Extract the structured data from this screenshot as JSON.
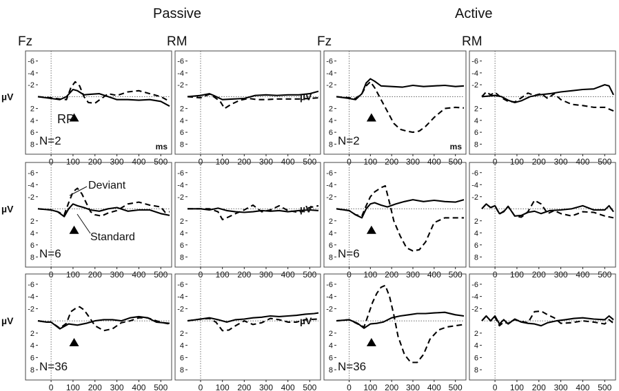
{
  "figure": {
    "conditions": [
      "Passive",
      "Active"
    ],
    "electrodes": [
      "Fz",
      "RM",
      "Fz",
      "RM"
    ],
    "y_unit": "µV",
    "x_unit": "ms",
    "n_labels": [
      "N=2",
      "N=6",
      "N=36"
    ],
    "annotations": {
      "rp": "RP",
      "deviant": "Deviant",
      "standard": "Standard"
    },
    "y_tick_labels": [
      "-6",
      "-4",
      "-2",
      "2",
      "4",
      "6",
      "8"
    ],
    "x_tick_labels": [
      "0",
      "100",
      "200",
      "300",
      "400",
      "500"
    ]
  },
  "chart_data": {
    "type": "line",
    "x_range": [
      -60,
      540
    ],
    "y_range_uV": [
      -7,
      9
    ],
    "y_inverted": true,
    "grid": false,
    "series_styles": {
      "Standard": "solid",
      "Deviant": "dashed"
    },
    "panels": [
      {
        "condition": "Passive",
        "electrode": "Fz",
        "n": 2,
        "marker_x": 105,
        "standard": {
          "x": [
            -60,
            0,
            40,
            70,
            100,
            120,
            150,
            180,
            220,
            260,
            300,
            350,
            400,
            450,
            500,
            540
          ],
          "y": [
            0,
            0.3,
            0.5,
            0,
            -1.2,
            -1,
            -0.3,
            -0.4,
            -0.5,
            0,
            0.5,
            0.5,
            0.6,
            0.5,
            0.8,
            1.6
          ]
        },
        "deviant": {
          "x": [
            -60,
            0,
            40,
            70,
            90,
            110,
            130,
            150,
            170,
            200,
            230,
            260,
            300,
            350,
            400,
            450,
            500,
            540
          ],
          "y": [
            0,
            0.2,
            0.4,
            0.5,
            -1.5,
            -2.5,
            -1.8,
            0,
            1,
            1.1,
            0.3,
            -0.5,
            -0.2,
            -0.8,
            -1,
            -0.5,
            0,
            0.8
          ]
        }
      },
      {
        "condition": "Passive",
        "electrode": "RM",
        "n": 2,
        "marker_x": null,
        "standard": {
          "x": [
            -60,
            0,
            40,
            60,
            100,
            150,
            200,
            250,
            300,
            350,
            400,
            450,
            500,
            540
          ],
          "y": [
            0,
            -0.2,
            -0.5,
            -0.2,
            0.5,
            0.4,
            0.3,
            -0.2,
            -0.3,
            -0.2,
            -0.3,
            -0.3,
            -0.5,
            -0.9
          ]
        },
        "deviant": {
          "x": [
            -60,
            0,
            40,
            60,
            90,
            110,
            140,
            180,
            220,
            260,
            300,
            350,
            400,
            450,
            500,
            540
          ],
          "y": [
            0,
            0.2,
            -0.4,
            0,
            0.8,
            2,
            1.3,
            0.6,
            0.3,
            0.5,
            0.5,
            0.4,
            0.4,
            0.4,
            0.3,
            0.2
          ]
        }
      },
      {
        "condition": "Active",
        "electrode": "Fz",
        "n": 2,
        "marker_x": 105,
        "standard": {
          "x": [
            -60,
            0,
            30,
            60,
            80,
            100,
            120,
            150,
            200,
            250,
            300,
            350,
            400,
            450,
            500,
            540
          ],
          "y": [
            0,
            0.3,
            0.5,
            -0.5,
            -2.3,
            -3,
            -2.6,
            -1.8,
            -1.7,
            -1.6,
            -1.9,
            -1.7,
            -1.8,
            -1.9,
            -1.7,
            -1.8
          ]
        },
        "deviant": {
          "x": [
            -60,
            0,
            30,
            60,
            80,
            100,
            120,
            150,
            180,
            210,
            240,
            270,
            300,
            330,
            360,
            400,
            450,
            500,
            540
          ],
          "y": [
            0,
            0.2,
            0.3,
            -0.5,
            -1.8,
            -2.5,
            -1.5,
            0.5,
            2.5,
            4.5,
            5.5,
            5.8,
            6,
            5.8,
            5,
            3.5,
            2,
            1.8,
            1.9
          ]
        }
      },
      {
        "condition": "Active",
        "electrode": "RM",
        "n": 2,
        "marker_x": null,
        "standard": {
          "x": [
            -60,
            0,
            30,
            60,
            90,
            120,
            160,
            200,
            250,
            300,
            350,
            400,
            450,
            500,
            520,
            540
          ],
          "y": [
            0,
            -0.2,
            0,
            0.6,
            1,
            0.7,
            0,
            -0.3,
            -0.5,
            -0.8,
            -1,
            -1.2,
            -1.3,
            -2,
            -1.8,
            -0.3
          ]
        },
        "deviant": {
          "x": [
            -60,
            -40,
            -20,
            0,
            30,
            60,
            90,
            120,
            150,
            180,
            210,
            240,
            270,
            300,
            350,
            400,
            450,
            500,
            540
          ],
          "y": [
            0,
            -0.8,
            -0.3,
            -0.7,
            0.2,
            0.8,
            0.9,
            0.2,
            -0.6,
            -0.2,
            -0.5,
            0.3,
            -0.5,
            0.5,
            1.3,
            1.5,
            1.8,
            1.8,
            2.4
          ]
        }
      },
      {
        "condition": "Passive",
        "electrode": "Fz",
        "n": 6,
        "marker_x": 105,
        "standard": {
          "x": [
            -60,
            0,
            30,
            60,
            80,
            100,
            120,
            150,
            180,
            220,
            260,
            300,
            350,
            400,
            450,
            500,
            540
          ],
          "y": [
            0,
            0.2,
            0.5,
            1.3,
            0,
            -0.8,
            -0.5,
            -0.2,
            0.2,
            0.4,
            0,
            -0.2,
            0.4,
            0.2,
            0.2,
            0.8,
            1.1
          ]
        },
        "deviant": {
          "x": [
            -60,
            0,
            30,
            60,
            80,
            100,
            120,
            140,
            160,
            180,
            200,
            230,
            260,
            300,
            350,
            400,
            450,
            500,
            520,
            540
          ],
          "y": [
            0,
            0.2,
            0.5,
            1,
            -1,
            -2.8,
            -3.4,
            -2.5,
            -1,
            0.5,
            1,
            1.2,
            0.7,
            0.3,
            -0.8,
            -1.1,
            -0.6,
            -0.3,
            0.6,
            0.5
          ]
        }
      },
      {
        "condition": "Passive",
        "electrode": "RM",
        "n": 6,
        "marker_x": null,
        "standard": {
          "x": [
            -60,
            0,
            40,
            80,
            120,
            160,
            200,
            240,
            280,
            320,
            360,
            400,
            450,
            500,
            540
          ],
          "y": [
            0,
            0,
            0.2,
            -0.1,
            0.3,
            0.5,
            0.6,
            0.5,
            0.3,
            0.4,
            0.3,
            0.5,
            0.3,
            0.2,
            0.3
          ]
        },
        "deviant": {
          "x": [
            -60,
            0,
            40,
            80,
            100,
            120,
            160,
            200,
            240,
            280,
            320,
            360,
            400,
            450,
            500,
            540
          ],
          "y": [
            0,
            0,
            0,
            0.5,
            1.8,
            1.5,
            0.8,
            0.2,
            -0.6,
            0.5,
            0.2,
            -0.5,
            0.3,
            0.6,
            -0.2,
            -0.5
          ]
        }
      },
      {
        "condition": "Active",
        "electrode": "Fz",
        "n": 6,
        "marker_x": 105,
        "standard": {
          "x": [
            -60,
            0,
            30,
            60,
            80,
            100,
            120,
            150,
            180,
            220,
            260,
            300,
            350,
            400,
            450,
            500,
            540
          ],
          "y": [
            0,
            0.3,
            1,
            1.5,
            0,
            -0.8,
            -1,
            -0.6,
            -0.3,
            -0.8,
            -1.2,
            -1.5,
            -1.2,
            -1.4,
            -1.2,
            -1.1,
            -1.5
          ]
        },
        "deviant": {
          "x": [
            -60,
            0,
            30,
            60,
            80,
            100,
            120,
            150,
            170,
            190,
            210,
            240,
            270,
            300,
            330,
            360,
            400,
            450,
            500,
            540
          ],
          "y": [
            0,
            0.3,
            1,
            1.2,
            -0.5,
            -2,
            -2.8,
            -3.5,
            -3.8,
            -1,
            2,
            4.5,
            6.5,
            7,
            6.8,
            5.5,
            2.3,
            1.5,
            1.5,
            1.5
          ]
        }
      },
      {
        "condition": "Active",
        "electrode": "RM",
        "n": 6,
        "marker_x": null,
        "standard": {
          "x": [
            -60,
            -40,
            -20,
            0,
            20,
            40,
            60,
            90,
            120,
            150,
            180,
            210,
            250,
            300,
            350,
            400,
            450,
            500,
            520,
            540
          ],
          "y": [
            0,
            -0.8,
            -0.2,
            -0.5,
            0.8,
            0.5,
            -0.4,
            1.2,
            1.1,
            0.6,
            0.4,
            0.8,
            0.3,
            0.2,
            0,
            -0.5,
            0.2,
            0.2,
            -0.5,
            0.5
          ]
        },
        "deviant": {
          "x": [
            -60,
            -40,
            -20,
            0,
            20,
            40,
            60,
            90,
            120,
            150,
            180,
            210,
            240,
            270,
            300,
            350,
            400,
            450,
            500,
            540
          ],
          "y": [
            0,
            -0.8,
            -0.2,
            -0.5,
            0.9,
            0.4,
            -0.4,
            1.2,
            1.4,
            0.5,
            -1.4,
            -0.8,
            0.8,
            0.3,
            0.8,
            1.2,
            0.5,
            0.6,
            1.2,
            1.5
          ]
        }
      },
      {
        "condition": "Passive",
        "electrode": "Fz",
        "n": 36,
        "marker_x": 105,
        "standard": {
          "x": [
            -60,
            -20,
            0,
            40,
            80,
            120,
            160,
            200,
            240,
            280,
            320,
            360,
            400,
            440,
            480,
            510,
            540
          ],
          "y": [
            0,
            0.2,
            0.2,
            1.3,
            0.5,
            0.7,
            0.4,
            0,
            -0.2,
            -0.2,
            0,
            -0.5,
            -0.7,
            -0.5,
            0.2,
            0.3,
            0.4
          ]
        },
        "deviant": {
          "x": [
            -60,
            -20,
            0,
            40,
            70,
            90,
            110,
            130,
            150,
            170,
            200,
            240,
            280,
            320,
            360,
            400,
            440,
            480,
            510,
            540
          ],
          "y": [
            0,
            0.2,
            0.2,
            1.2,
            0.4,
            -1.5,
            -2,
            -2.3,
            -1.8,
            -0.8,
            0.8,
            1.6,
            1.3,
            0.3,
            0,
            -0.5,
            -0.5,
            0,
            0.3,
            0.5
          ]
        }
      },
      {
        "condition": "Passive",
        "electrode": "RM",
        "n": 36,
        "marker_x": null,
        "standard": {
          "x": [
            -60,
            0,
            40,
            80,
            120,
            160,
            200,
            240,
            280,
            320,
            360,
            400,
            440,
            480,
            520,
            540
          ],
          "y": [
            0,
            -0.3,
            -0.5,
            -0.2,
            0.2,
            -0.2,
            -0.3,
            -0.5,
            -0.6,
            -0.8,
            -0.7,
            -0.8,
            -0.9,
            -1.1,
            -1.2,
            -1.3
          ]
        },
        "deviant": {
          "x": [
            -60,
            0,
            40,
            70,
            100,
            130,
            160,
            200,
            240,
            280,
            320,
            360,
            400,
            440,
            480,
            540
          ],
          "y": [
            0,
            -0.3,
            -0.4,
            0.2,
            1.6,
            1.5,
            0.8,
            0,
            0.6,
            0.3,
            -0.4,
            -0.2,
            0.2,
            0.2,
            -0.2,
            -0.3
          ]
        }
      },
      {
        "condition": "Active",
        "electrode": "Fz",
        "n": 36,
        "marker_x": 105,
        "standard": {
          "x": [
            -60,
            0,
            40,
            70,
            100,
            130,
            160,
            200,
            240,
            280,
            320,
            360,
            400,
            450,
            500,
            540
          ],
          "y": [
            0,
            -0.2,
            0.4,
            1.2,
            0.5,
            0.4,
            0.2,
            -0.5,
            -0.8,
            -1,
            -1.2,
            -1.2,
            -1.3,
            -1.4,
            -1,
            -0.8
          ]
        },
        "deviant": {
          "x": [
            -60,
            0,
            40,
            70,
            90,
            110,
            130,
            150,
            170,
            190,
            210,
            230,
            260,
            290,
            320,
            350,
            380,
            420,
            460,
            500,
            540
          ],
          "y": [
            0,
            -0.2,
            0.5,
            1,
            -1,
            -3,
            -4.5,
            -5.5,
            -5.8,
            -4,
            -1,
            2.5,
            5.5,
            6.8,
            6.8,
            5.5,
            3,
            1.5,
            1,
            0.8,
            0.6
          ]
        }
      },
      {
        "condition": "Active",
        "electrode": "RM",
        "n": 36,
        "marker_x": null,
        "standard": {
          "x": [
            -60,
            -40,
            -20,
            0,
            20,
            40,
            60,
            90,
            120,
            150,
            180,
            210,
            240,
            280,
            320,
            360,
            400,
            450,
            500,
            520,
            540
          ],
          "y": [
            0,
            -0.8,
            0,
            -0.8,
            0.5,
            -0.2,
            0.5,
            -0.3,
            0.2,
            0.4,
            0.5,
            0.8,
            0.3,
            0,
            -0.2,
            -0.4,
            -0.5,
            -0.3,
            -0.2,
            -0.8,
            -0.2
          ]
        },
        "deviant": {
          "x": [
            -60,
            -40,
            -20,
            0,
            20,
            40,
            60,
            90,
            120,
            150,
            180,
            210,
            240,
            270,
            300,
            350,
            400,
            450,
            500,
            520,
            540
          ],
          "y": [
            0,
            -0.8,
            0,
            -0.6,
            0.8,
            0.2,
            0.4,
            -0.2,
            0.1,
            0.3,
            -1.5,
            -1.6,
            -1,
            -0.5,
            0.4,
            0.3,
            0,
            0.2,
            0.5,
            -0.2,
            0.4
          ]
        }
      }
    ]
  }
}
